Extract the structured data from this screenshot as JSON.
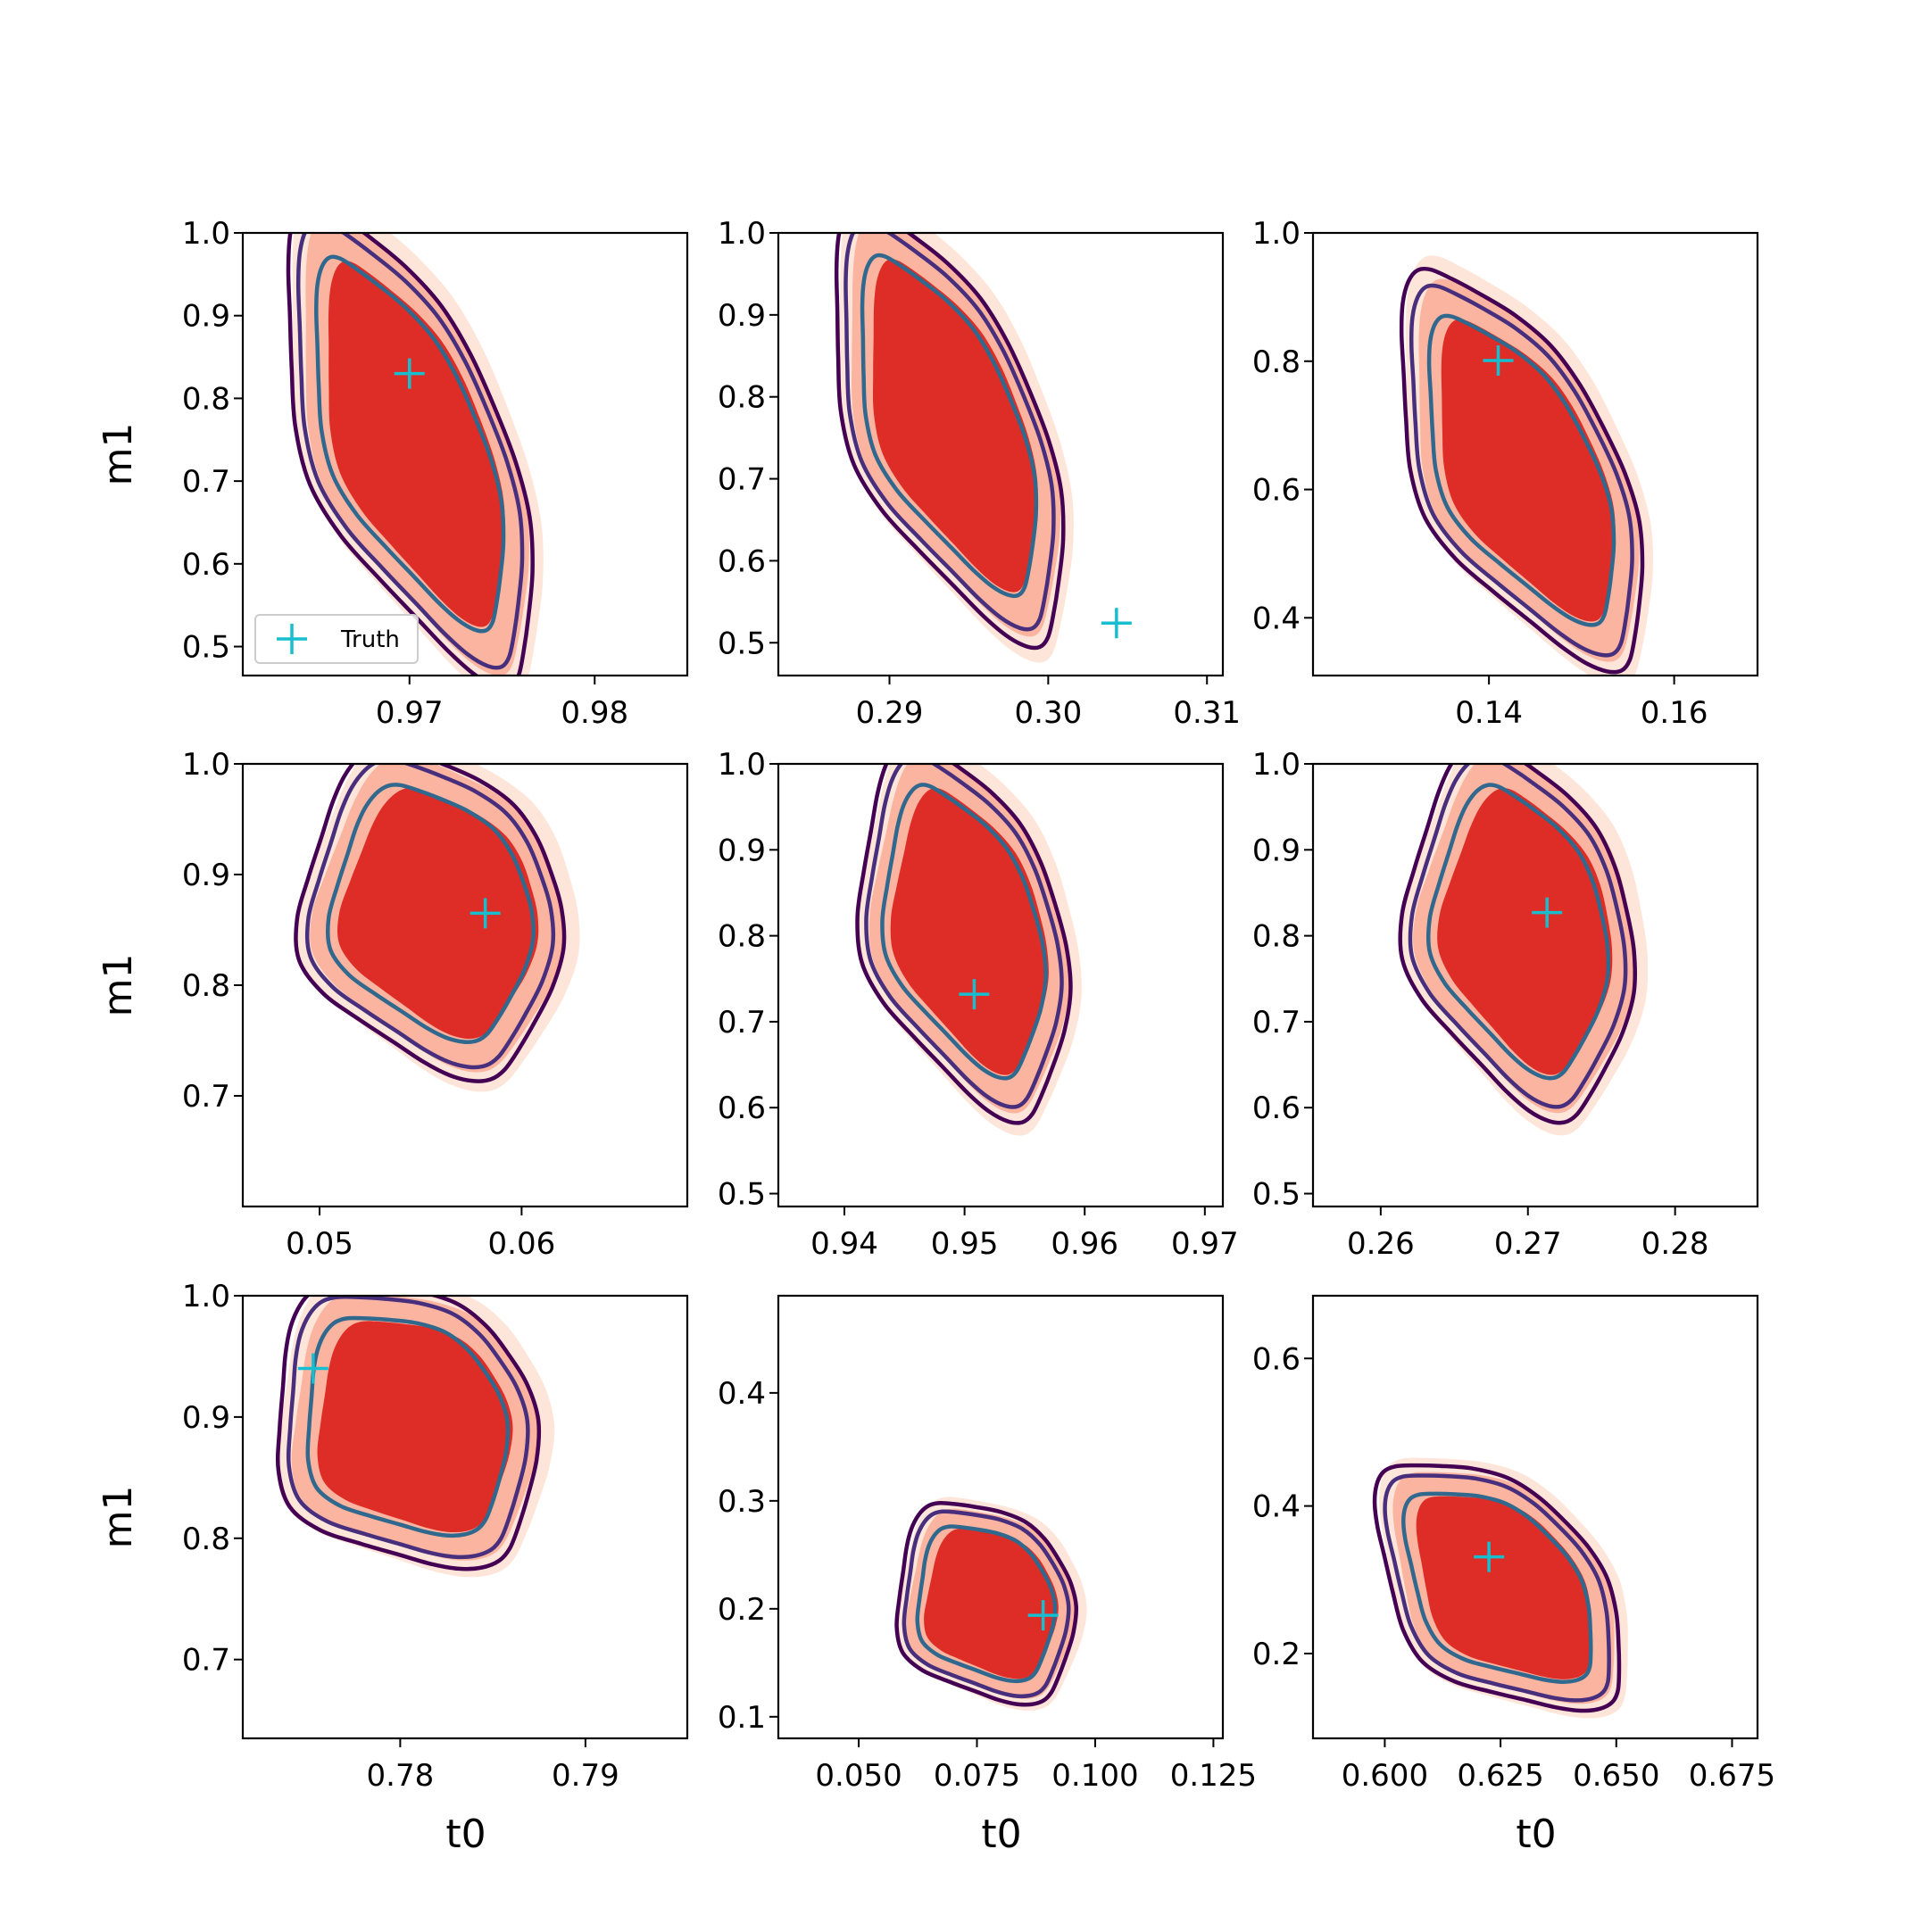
{
  "colors": {
    "fill_outer": "#fee5d9",
    "fill_mid": "#fbb4a0",
    "fill_inner": "#de2d26",
    "contour_outer": "#440154",
    "contour_mid": "#472f7d",
    "contour_inner": "#31688e",
    "truth_marker": "#17becf"
  },
  "legend": {
    "label": "Truth",
    "marker_icon": "plus-marker-icon"
  },
  "chart_data": [
    {
      "type": "contour",
      "xlabel": "",
      "ylabel": "m1",
      "xlim": [
        0.961,
        0.985
      ],
      "ylim": [
        0.465,
        1.0
      ],
      "xticks": [
        0.97,
        0.98
      ],
      "xtick_labels": [
        "0.97",
        "0.98"
      ],
      "yticks": [
        0.5,
        0.6,
        0.7,
        0.8,
        0.9,
        1.0
      ],
      "ytick_labels": [
        "0.5",
        "0.6",
        "0.7",
        "0.8",
        "0.9",
        "1.0"
      ],
      "truth": {
        "x": 0.97,
        "y": 0.83
      },
      "posterior": {
        "top": [
          0.966,
          0.99
        ],
        "bottom": [
          0.9745,
          0.5
        ],
        "width": 0.0045
      },
      "legend": true
    },
    {
      "type": "contour",
      "xlabel": "",
      "ylabel": "",
      "xlim": [
        0.283,
        0.311
      ],
      "ylim": [
        0.46,
        1.0
      ],
      "xticks": [
        0.29,
        0.3,
        0.31
      ],
      "xtick_labels": [
        "0.29",
        "0.30",
        "0.31"
      ],
      "yticks": [
        0.5,
        0.6,
        0.7,
        0.8,
        0.9,
        1.0
      ],
      "ytick_labels": [
        "0.5",
        "0.6",
        "0.7",
        "0.8",
        "0.9",
        "1.0"
      ],
      "truth": {
        "x": 0.3043,
        "y": 0.524
      },
      "posterior": {
        "top": [
          0.2895,
          0.99
        ],
        "bottom": [
          0.2985,
          0.54
        ],
        "width": 0.005
      }
    },
    {
      "type": "contour",
      "xlabel": "",
      "ylabel": "",
      "xlim": [
        0.121,
        0.169
      ],
      "ylim": [
        0.31,
        1.0
      ],
      "xticks": [
        0.14,
        0.16
      ],
      "xtick_labels": [
        "0.14",
        "0.16"
      ],
      "yticks": [
        0.4,
        0.6,
        0.8,
        1.0
      ],
      "ytick_labels": [
        "0.4",
        "0.6",
        "0.8",
        "1.0"
      ],
      "truth": {
        "x": 0.141,
        "y": 0.801
      },
      "posterior": {
        "top": [
          0.1355,
          0.89
        ],
        "bottom": [
          0.1525,
          0.37
        ],
        "width": 0.009
      }
    },
    {
      "type": "contour",
      "xlabel": "",
      "ylabel": "m1",
      "xlim": [
        0.0462,
        0.0682
      ],
      "ylim": [
        0.6,
        1.0
      ],
      "xticks": [
        0.05,
        0.06
      ],
      "xtick_labels": [
        "0.05",
        "0.06"
      ],
      "yticks": [
        0.7,
        0.8,
        0.9,
        1.0
      ],
      "ytick_labels": [
        "0.7",
        "0.8",
        "0.9",
        "1.0"
      ],
      "truth": {
        "x": 0.0582,
        "y": 0.865
      },
      "posterior": {
        "top": [
          0.054,
          0.99
        ],
        "bottom": [
          0.058,
          0.74
        ],
        "width": 0.0055
      }
    },
    {
      "type": "contour",
      "xlabel": "",
      "ylabel": "",
      "xlim": [
        0.9345,
        0.9715
      ],
      "ylim": [
        0.485,
        1.0
      ],
      "xticks": [
        0.94,
        0.95,
        0.96,
        0.97
      ],
      "xtick_labels": [
        "0.94",
        "0.95",
        "0.96",
        "0.97"
      ],
      "yticks": [
        0.5,
        0.6,
        0.7,
        0.8,
        0.9,
        1.0
      ],
      "ytick_labels": [
        "0.5",
        "0.6",
        "0.7",
        "0.8",
        "0.9",
        "1.0"
      ],
      "truth": {
        "x": 0.9508,
        "y": 0.732
      },
      "posterior": {
        "top": [
          0.947,
          0.99
        ],
        "bottom": [
          0.954,
          0.62
        ],
        "width": 0.007
      }
    },
    {
      "type": "contour",
      "xlabel": "",
      "ylabel": "",
      "xlim": [
        0.2554,
        0.2856
      ],
      "ylim": [
        0.485,
        1.0
      ],
      "xticks": [
        0.26,
        0.27,
        0.28
      ],
      "xtick_labels": [
        "0.26",
        "0.27",
        "0.28"
      ],
      "yticks": [
        0.5,
        0.6,
        0.7,
        0.8,
        0.9,
        1.0
      ],
      "ytick_labels": [
        "0.5",
        "0.6",
        "0.7",
        "0.8",
        "0.9",
        "1.0"
      ],
      "truth": {
        "x": 0.2713,
        "y": 0.827
      },
      "posterior": {
        "top": [
          0.268,
          0.99
        ],
        "bottom": [
          0.272,
          0.62
        ],
        "width": 0.0065
      }
    },
    {
      "type": "contour",
      "xlabel": "t0",
      "ylabel": "m1",
      "xlim": [
        0.7715,
        0.7955
      ],
      "ylim": [
        0.635,
        1.0
      ],
      "xticks": [
        0.78,
        0.79
      ],
      "xtick_labels": [
        "0.78",
        "0.79"
      ],
      "yticks": [
        0.7,
        0.8,
        0.9,
        1.0
      ],
      "ytick_labels": [
        "0.7",
        "0.8",
        "0.9",
        "1.0"
      ],
      "truth": {
        "x": 0.7753,
        "y": 0.94
      },
      "posterior": {
        "top": [
          0.777,
          0.985
        ],
        "bottom": [
          0.7845,
          0.8
        ],
        "width": 0.006
      }
    },
    {
      "type": "contour",
      "xlabel": "t0",
      "ylabel": "",
      "xlim": [
        0.033,
        0.127
      ],
      "ylim": [
        0.08,
        0.49
      ],
      "xticks": [
        0.05,
        0.075,
        0.1,
        0.125
      ],
      "xtick_labels": [
        "0.050",
        "0.075",
        "0.100",
        "0.125"
      ],
      "yticks": [
        0.1,
        0.2,
        0.3,
        0.4
      ],
      "ytick_labels": [
        "0.1",
        "0.2",
        "0.3",
        "0.4"
      ],
      "truth": {
        "x": 0.089,
        "y": 0.194
      },
      "posterior": {
        "top": [
          0.069,
          0.28
        ],
        "bottom": [
          0.087,
          0.13
        ],
        "width": 0.016
      }
    },
    {
      "type": "contour",
      "xlabel": "t0",
      "ylabel": "",
      "xlim": [
        0.5845,
        0.6805
      ],
      "ylim": [
        0.085,
        0.685
      ],
      "xticks": [
        0.6,
        0.625,
        0.65,
        0.675
      ],
      "xtick_labels": [
        "0.600",
        "0.625",
        "0.650",
        "0.675"
      ],
      "yticks": [
        0.2,
        0.4,
        0.6
      ],
      "ytick_labels": [
        "0.2",
        "0.4",
        "0.6"
      ],
      "truth": {
        "x": 0.6225,
        "y": 0.331
      },
      "posterior": {
        "top": [
          0.6065,
          0.42
        ],
        "bottom": [
          0.645,
          0.16
        ],
        "width": 0.018
      }
    }
  ]
}
